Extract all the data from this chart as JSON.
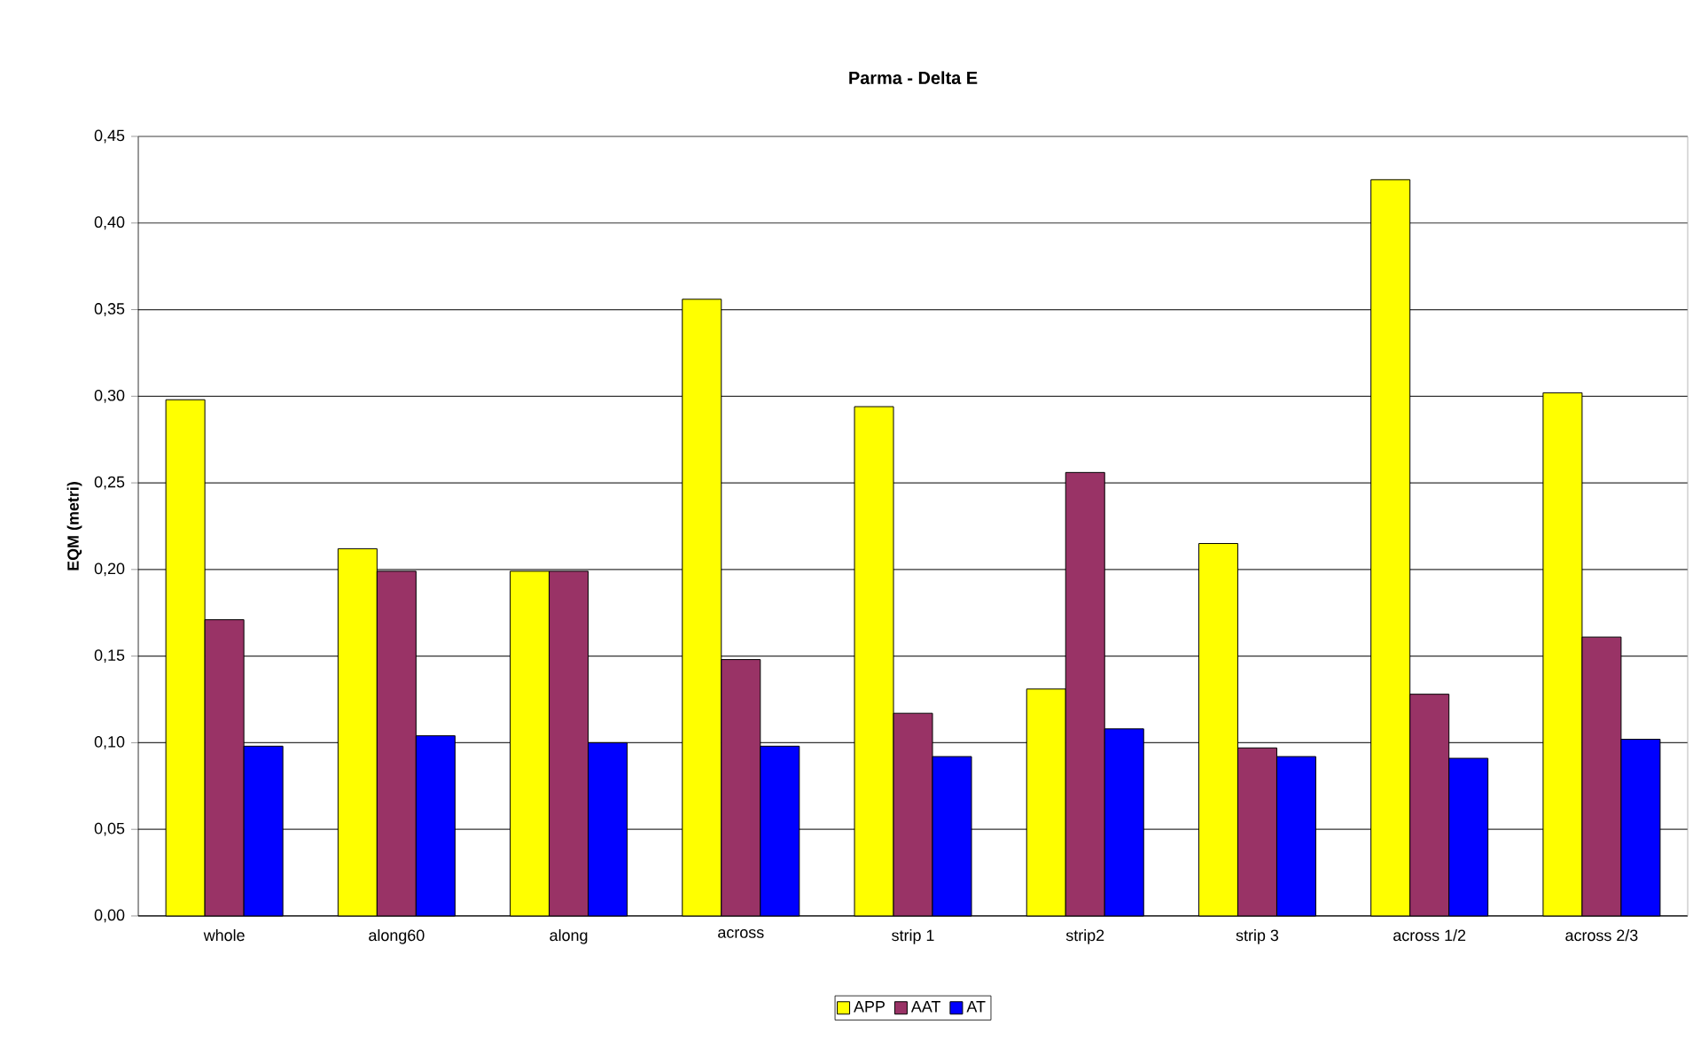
{
  "chart_data": {
    "type": "bar",
    "title": "Parma - Delta E",
    "ylabel": "EQM (metri)",
    "categories": [
      "whole",
      "along60",
      "along",
      "across",
      "strip 1",
      "strip2",
      "strip 3",
      "across 1/2",
      "across 2/3"
    ],
    "series": [
      {
        "name": "APP",
        "color": "#ffff00",
        "values": [
          0.298,
          0.212,
          0.199,
          0.356,
          0.294,
          0.131,
          0.215,
          0.425,
          0.302
        ]
      },
      {
        "name": "AAT",
        "color": "#993366",
        "values": [
          0.171,
          0.199,
          0.199,
          0.148,
          0.117,
          0.256,
          0.097,
          0.128,
          0.161
        ]
      },
      {
        "name": "AT",
        "color": "#0000ff",
        "values": [
          0.098,
          0.104,
          0.1,
          0.098,
          0.092,
          0.108,
          0.092,
          0.091,
          0.102
        ]
      }
    ],
    "ylim": [
      0,
      0.45
    ],
    "yticks": [
      {
        "value": 0,
        "label": "0,00"
      },
      {
        "value": 0.05,
        "label": "0,05"
      },
      {
        "value": 0.1,
        "label": "0,10"
      },
      {
        "value": 0.15,
        "label": "0,15"
      },
      {
        "value": 0.2,
        "label": "0,20"
      },
      {
        "value": 0.25,
        "label": "0,25"
      },
      {
        "value": 0.3,
        "label": "0,30"
      },
      {
        "value": 0.35,
        "label": "0,35"
      },
      {
        "value": 0.4,
        "label": "0,40"
      },
      {
        "value": 0.45,
        "label": "0,45"
      }
    ],
    "grid": "y",
    "legend": "bottom"
  }
}
